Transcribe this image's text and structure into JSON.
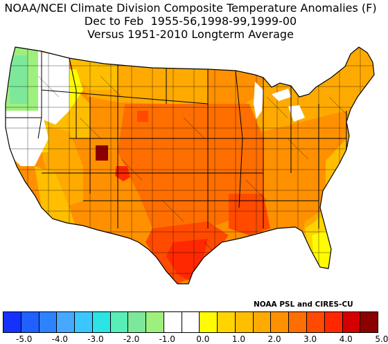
{
  "title": {
    "line1": "NOAA/NCEI Climate Division Composite Temperature Anomalies (F)",
    "line2": "Dec to Feb  1955-56,1998-99,1999-00",
    "line3": "Versus 1951-2010 Longterm Average"
  },
  "credit": "NOAA PSL and CIRES-CU",
  "colorbar": {
    "colors": [
      "#1432ff",
      "#2060ff",
      "#2f82ff",
      "#46a8ff",
      "#3cc6ff",
      "#2ce3e6",
      "#58eeb8",
      "#7ee89a",
      "#9ef07e",
      "#ffffff",
      "#ffffff",
      "#fffb00",
      "#ffd400",
      "#ffbe00",
      "#ffaa00",
      "#ff9000",
      "#ff6e00",
      "#ff4a00",
      "#ff2800",
      "#d40000",
      "#8b0000"
    ],
    "tick_labels": [
      "-5.0",
      "-4.0",
      "-3.0",
      "-2.0",
      "-1.0",
      "0.0",
      "1.0",
      "2.0",
      "3.0",
      "4.0",
      "5.0"
    ]
  }
}
